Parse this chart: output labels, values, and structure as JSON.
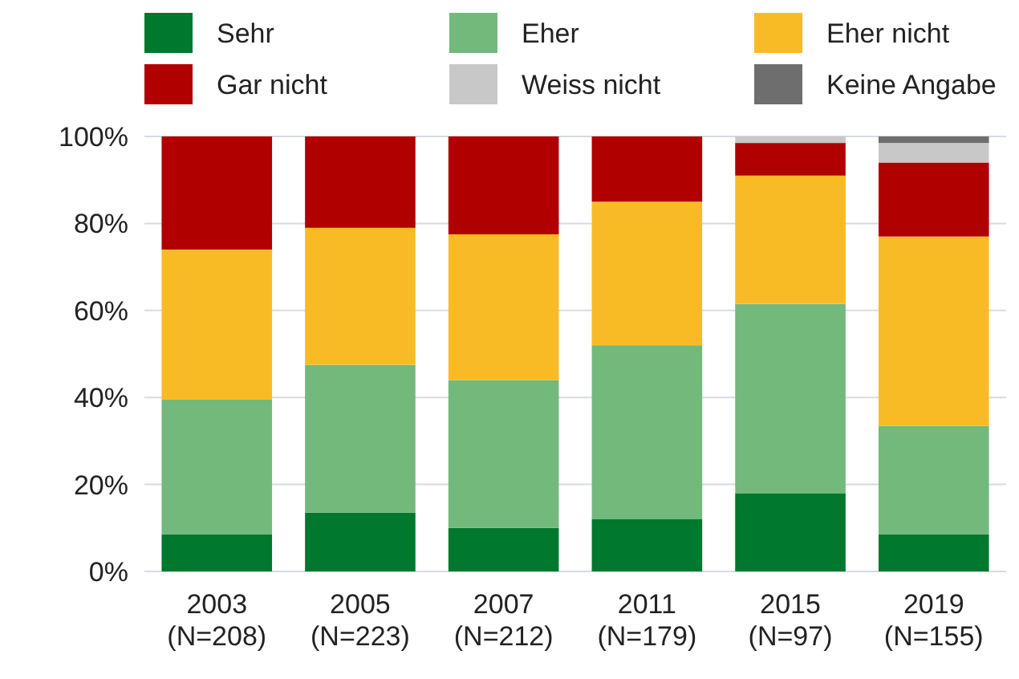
{
  "chart_data": {
    "type": "bar",
    "stacked": true,
    "categories": [
      "2003 (N=208)",
      "2005 (N=223)",
      "2007 (N=212)",
      "2011 (N=179)",
      "2015 (N=97)",
      "2019 (N=155)"
    ],
    "series": [
      {
        "name": "Sehr",
        "color": "#00782d",
        "values": [
          8.5,
          13.5,
          10,
          12,
          18,
          8.5
        ]
      },
      {
        "name": "Eher",
        "color": "#72b97b",
        "values": [
          31,
          34,
          34,
          40,
          43.5,
          25
        ]
      },
      {
        "name": "Eher nicht",
        "color": "#f9bb25",
        "values": [
          34.5,
          31.5,
          33.5,
          33,
          29.5,
          43.5
        ]
      },
      {
        "name": "Gar nicht",
        "color": "#b00000",
        "values": [
          26,
          21,
          22.5,
          15,
          7.5,
          17
        ]
      },
      {
        "name": "Weiss nicht",
        "color": "#c8c8c8",
        "values": [
          0,
          0,
          0,
          0,
          1.5,
          4.5
        ]
      },
      {
        "name": "Keine Angabe",
        "color": "#6e6e6e",
        "values": [
          0,
          0,
          0,
          0,
          0,
          1.5
        ]
      }
    ],
    "ylim": [
      0,
      100
    ],
    "yticks": [
      {
        "value": 0,
        "label": "0%"
      },
      {
        "value": 20,
        "label": "20%"
      },
      {
        "value": 40,
        "label": "40%"
      },
      {
        "value": 60,
        "label": "60%"
      },
      {
        "value": 80,
        "label": "80%"
      },
      {
        "value": 100,
        "label": "100%"
      }
    ],
    "grid": "y",
    "legend": "top"
  }
}
